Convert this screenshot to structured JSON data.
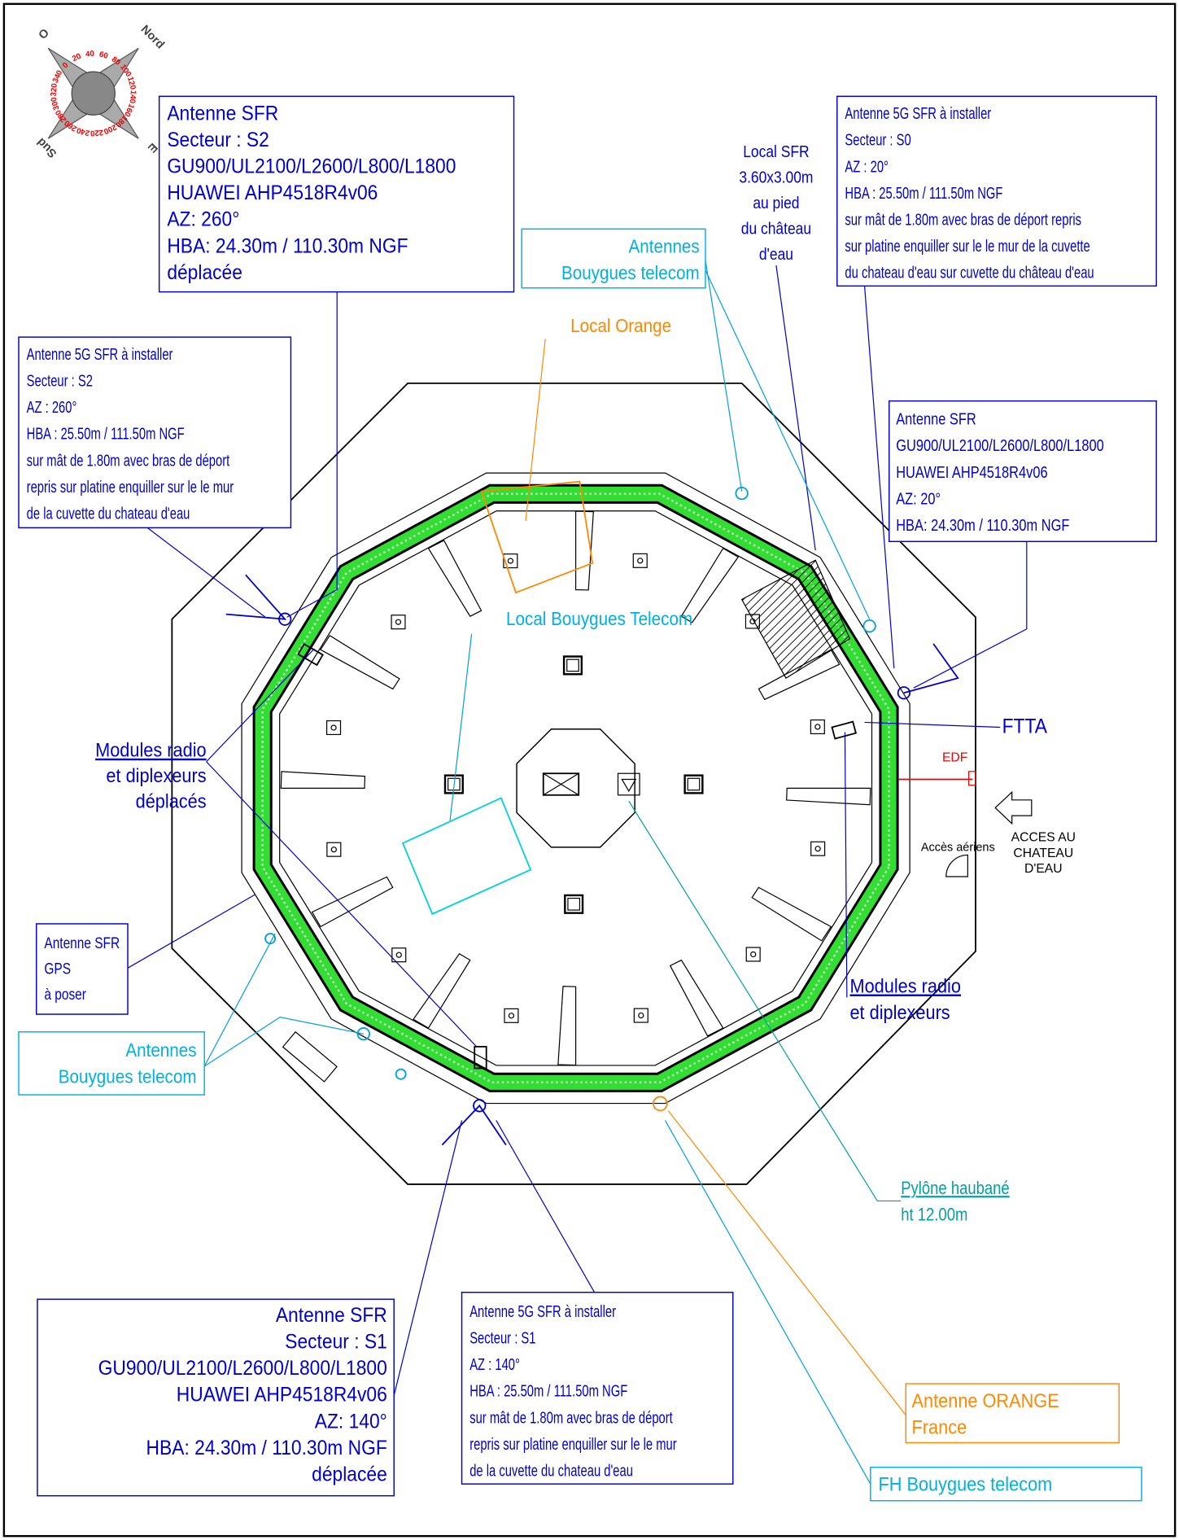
{
  "compass": {
    "points": [
      "O",
      "Nord",
      "Sud",
      "E"
    ],
    "degrees": [
      0,
      20,
      40,
      60,
      80,
      100,
      120,
      140,
      160,
      180,
      200,
      220,
      240,
      260,
      280,
      300,
      320,
      340
    ]
  },
  "callouts": [
    {
      "lines": [
        "Antenne SFR",
        "Secteur : S2",
        "GU900/UL2100/L2600/L800/L1800",
        "HUAWEI AHP4518R4v06",
        "AZ: 260°",
        "HBA: 24.30m / 110.30m NGF",
        "déplacée"
      ]
    },
    {
      "lines": [
        "Antenne 5G SFR à installer",
        "Secteur : S2",
        "AZ : 260°",
        "HBA : 25.50m / 111.50m NGF",
        "sur mât de 1.80m avec bras de déport",
        "repris sur platine enquiller sur le le mur",
        "de la cuvette du chateau d'eau"
      ]
    },
    {
      "lines": [
        "Antenne 5G SFR à installer",
        "Secteur : S0",
        "AZ : 20°",
        "HBA : 25.50m / 111.50m NGF",
        "sur mât de 1.80m avec bras de déport repris",
        "sur platine enquiller sur le le mur de la cuvette",
        "du chateau d'eau sur cuvette du château d'eau"
      ]
    },
    {
      "lines": [
        "Local SFR",
        "3.60x3.00m",
        "au pied",
        "du château",
        "d'eau"
      ]
    },
    {
      "lines": [
        "Antennes",
        "Bouygues telecom"
      ]
    },
    {
      "lines": [
        "Local Orange"
      ]
    },
    {
      "lines": [
        "Antenne SFR",
        "GU900/UL2100/L2600/L800/L1800",
        "HUAWEI AHP4518R4v06",
        "AZ: 20°",
        "HBA: 24.30m / 110.30m NGF"
      ]
    },
    {
      "lines": [
        "Local Bouygues Telecom"
      ]
    },
    {
      "lines": [
        "FTTA"
      ]
    },
    {
      "lines": [
        "EDF"
      ]
    },
    {
      "lines": [
        "ACCES AU",
        "CHATEAU",
        "D'EAU"
      ]
    },
    {
      "lines": [
        "Accès aériens"
      ]
    },
    {
      "lines": [
        "Modules radio",
        "et diplexeurs",
        "déplacés"
      ]
    },
    {
      "lines": [
        "Antenne SFR",
        "GPS",
        "à poser"
      ]
    },
    {
      "lines": [
        "Antennes",
        "Bouygues telecom"
      ]
    },
    {
      "lines": [
        "Modules radio",
        "et diplexeurs"
      ]
    },
    {
      "lines": [
        "Pylône haubané",
        "ht 12.00m"
      ]
    },
    {
      "lines": [
        "Antenne SFR",
        "Secteur : S1",
        "GU900/UL2100/L2600/L800/L1800",
        "HUAWEI AHP4518R4v06",
        "AZ: 140°",
        "HBA: 24.30m / 110.30m NGF",
        "déplacée"
      ]
    },
    {
      "lines": [
        "Antenne 5G SFR à installer",
        "Secteur : S1",
        "AZ : 140°",
        "HBA : 25.50m / 111.50m NGF",
        "sur mât de 1.80m avec bras de déport",
        "repris sur platine enquiller sur le le mur",
        "de la cuvette du chateau d'eau"
      ]
    },
    {
      "lines": [
        "Antenne ORANGE",
        "France"
      ]
    },
    {
      "lines": [
        "FH Bouygues telecom"
      ]
    }
  ]
}
